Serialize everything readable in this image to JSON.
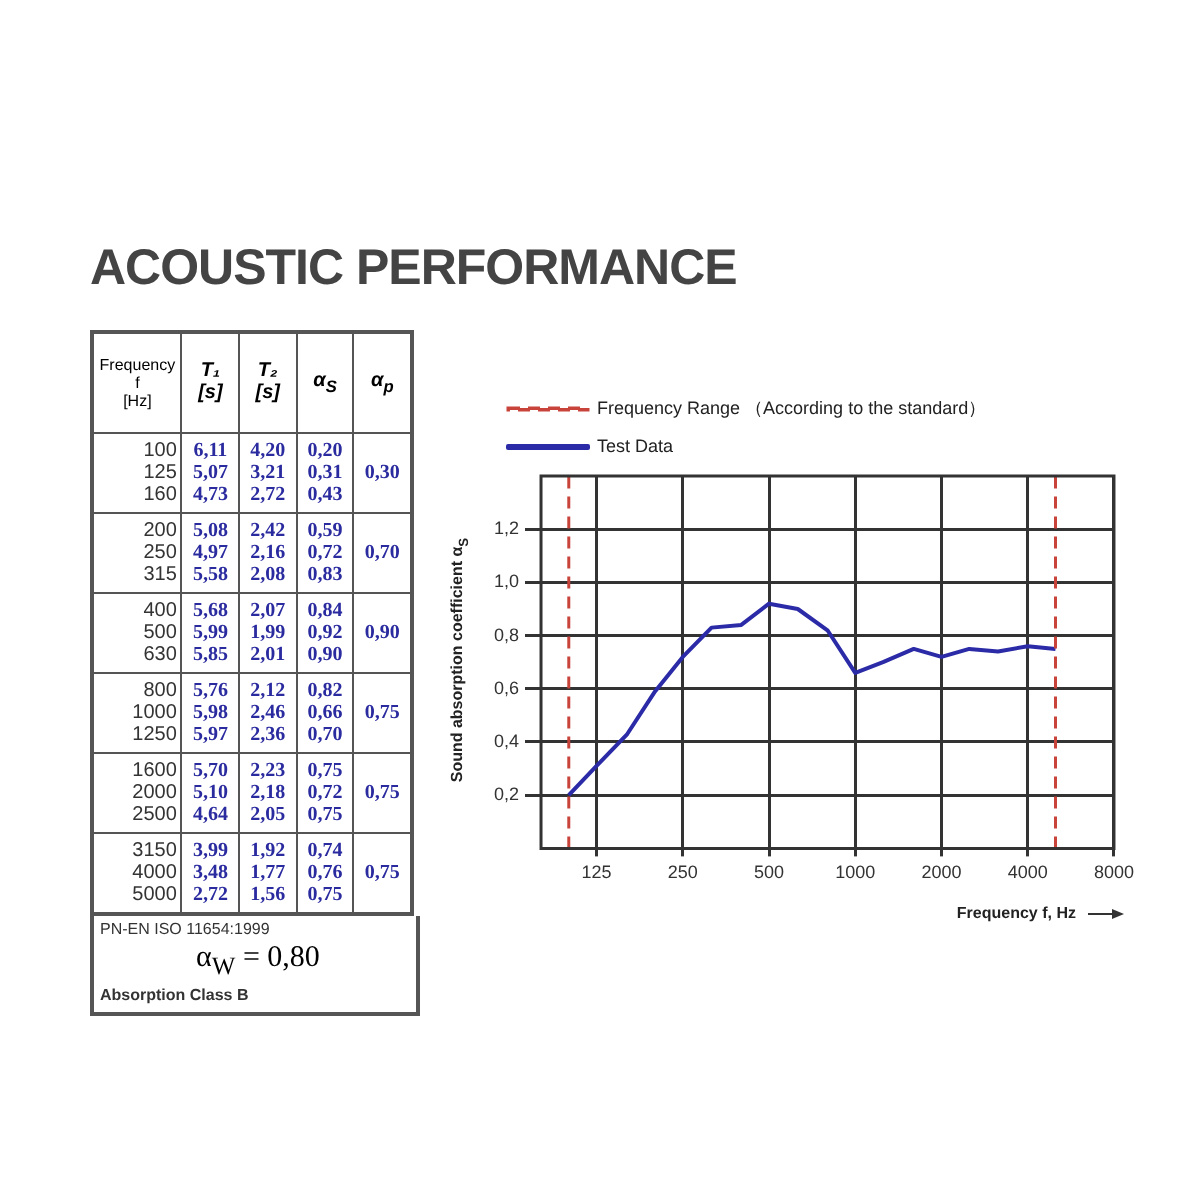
{
  "chart_data": [
    {
      "type": "other",
      "title": "ACOUSTIC PERFORMANCE",
      "xlabel": "Frequency f [Hz]",
      "categories": [
        "100",
        "125",
        "160",
        "200",
        "250",
        "315",
        "400",
        "500",
        "630",
        "800",
        "1000",
        "1250",
        "1600",
        "2000",
        "2500",
        "3150",
        "4000",
        "5000"
      ],
      "series": [
        {
          "name": "T₁ [s]",
          "values": [
            6.11,
            5.07,
            4.73,
            5.08,
            4.97,
            5.58,
            5.68,
            5.99,
            5.85,
            5.76,
            5.98,
            5.97,
            5.7,
            5.1,
            4.64,
            3.99,
            3.48,
            2.72
          ],
          "value_labels": [
            "6,11",
            "5,07",
            "4,73",
            "5,08",
            "4,97",
            "5,58",
            "5,68",
            "5,99",
            "5,85",
            "5,76",
            "5,98",
            "5,97",
            "5,70",
            "5,10",
            "4,64",
            "3,99",
            "3,48",
            "2,72"
          ]
        },
        {
          "name": "T₂ [s]",
          "values": [
            4.2,
            3.21,
            2.72,
            2.42,
            2.16,
            2.08,
            2.07,
            1.99,
            2.01,
            2.12,
            2.46,
            2.36,
            2.23,
            2.18,
            2.05,
            1.92,
            1.77,
            1.56
          ],
          "value_labels": [
            "4,20",
            "3,21",
            "2,72",
            "2,42",
            "2,16",
            "2,08",
            "2,07",
            "1,99",
            "2,01",
            "2,12",
            "2,46",
            "2,36",
            "2,23",
            "2,18",
            "2,05",
            "1,92",
            "1,77",
            "1,56"
          ]
        },
        {
          "name": "α$_{S}$",
          "values": [
            0.2,
            0.31,
            0.43,
            0.59,
            0.72,
            0.83,
            0.84,
            0.92,
            0.9,
            0.82,
            0.66,
            0.7,
            0.75,
            0.72,
            0.75,
            0.74,
            0.76,
            0.75
          ],
          "value_labels": [
            "0,20",
            "0,31",
            "0,43",
            "0,59",
            "0,72",
            "0,83",
            "0,84",
            "0,92",
            "0,90",
            "0,82",
            "0,66",
            "0,70",
            "0,75",
            "0,72",
            "0,75",
            "0,74",
            "0,76",
            "0,75"
          ]
        },
        {
          "name": "α$_{p}$",
          "values": [
            null,
            0.3,
            null,
            null,
            0.7,
            null,
            null,
            0.9,
            null,
            null,
            0.75,
            null,
            null,
            0.75,
            null,
            null,
            0.75,
            null
          ],
          "value_labels": [
            null,
            "0,30",
            null,
            null,
            "0,70",
            null,
            null,
            "0,90",
            null,
            null,
            "0,75",
            null,
            null,
            "0,75",
            null,
            null,
            "0,75",
            null
          ]
        }
      ],
      "annotations": [
        "PN-EN ISO 11654:1999",
        "α$_{W}$ = 0,80",
        "Absorption Class B"
      ]
    },
    {
      "type": "line",
      "xlabel": "Frequency f, Hz",
      "ylabel": "Sound absorption coefficient α$_{S}$",
      "x": [
        100,
        125,
        160,
        200,
        250,
        315,
        400,
        500,
        630,
        800,
        1000,
        1250,
        1600,
        2000,
        2500,
        3150,
        4000,
        5000
      ],
      "series": [
        {
          "name": "Test Data",
          "color": "#2b2ba8",
          "values": [
            0.2,
            0.31,
            0.43,
            0.59,
            0.72,
            0.83,
            0.84,
            0.92,
            0.9,
            0.82,
            0.66,
            0.7,
            0.75,
            0.72,
            0.75,
            0.74,
            0.76,
            0.75
          ]
        }
      ],
      "log": "x",
      "xlim": [
        80,
        8000
      ],
      "xticks": [
        125,
        250,
        500,
        1000,
        2000,
        4000,
        8000
      ],
      "ylim": [
        0,
        1.4
      ],
      "yticks": [
        {
          "value": 0.2,
          "label": "0,2"
        },
        {
          "value": 0.4,
          "label": "0,4"
        },
        {
          "value": 0.6,
          "label": "0,6"
        },
        {
          "value": 0.8,
          "label": "0,8"
        },
        {
          "value": 1.0,
          "label": "1,0"
        },
        {
          "value": 1.2,
          "label": "1,2"
        }
      ],
      "grid": true,
      "legend": "top",
      "ref_lines": [
        {
          "axis": "x",
          "value": 100,
          "label": "Frequency Range （According to the standard）",
          "color": "#c8433a",
          "line_style": "dashed"
        },
        {
          "axis": "x",
          "value": 5000,
          "color": "#c8433a",
          "line_style": "dashed"
        }
      ]
    }
  ]
}
